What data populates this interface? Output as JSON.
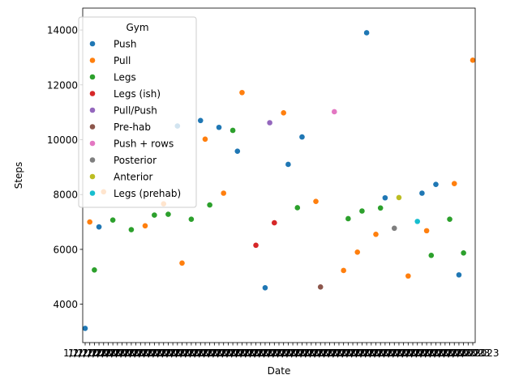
{
  "chart_data": {
    "type": "scatter",
    "title": "",
    "xlabel": "Date",
    "ylabel": "Steps",
    "ylim": [
      2600,
      14800
    ],
    "yticks": [
      4000,
      6000,
      8000,
      10000,
      12000,
      14000
    ],
    "x_category_count": 85,
    "x_tick_label": "1/2/2023",
    "x_tick_label_last": "2023",
    "grid": false,
    "legend": {
      "title": "Gym",
      "position": "top-left"
    },
    "series": [
      {
        "name": "Push",
        "color": "#1f77b4",
        "points": [
          [
            0,
            3120
          ],
          [
            3,
            6820
          ],
          [
            20,
            10500
          ],
          [
            25,
            10700
          ],
          [
            29,
            10450
          ],
          [
            33,
            9580
          ],
          [
            39,
            4600
          ],
          [
            44,
            9100
          ],
          [
            47,
            10100
          ],
          [
            61,
            13900
          ],
          [
            65,
            7880
          ],
          [
            73,
            8050
          ],
          [
            76,
            8370
          ],
          [
            81,
            5070
          ]
        ]
      },
      {
        "name": "Pull",
        "color": "#ff7f0e",
        "points": [
          [
            1,
            7000
          ],
          [
            4,
            8100
          ],
          [
            13,
            6860
          ],
          [
            17,
            7660
          ],
          [
            21,
            5500
          ],
          [
            26,
            10020
          ],
          [
            30,
            8050
          ],
          [
            34,
            11720
          ],
          [
            43,
            10980
          ],
          [
            50,
            7750
          ],
          [
            56,
            5230
          ],
          [
            59,
            5900
          ],
          [
            63,
            6550
          ],
          [
            70,
            5030
          ],
          [
            74,
            6680
          ],
          [
            80,
            8400
          ],
          [
            84,
            12900
          ]
        ]
      },
      {
        "name": "Legs",
        "color": "#2ca02c",
        "points": [
          [
            2,
            5250
          ],
          [
            6,
            7070
          ],
          [
            10,
            6720
          ],
          [
            15,
            7250
          ],
          [
            18,
            7280
          ],
          [
            23,
            7100
          ],
          [
            27,
            7620
          ],
          [
            32,
            10340
          ],
          [
            46,
            7520
          ],
          [
            57,
            7120
          ],
          [
            60,
            7400
          ],
          [
            64,
            7510
          ],
          [
            75,
            5780
          ],
          [
            79,
            7100
          ],
          [
            82,
            5870
          ]
        ]
      },
      {
        "name": "Legs (ish)",
        "color": "#d62728",
        "points": [
          [
            37,
            6150
          ],
          [
            41,
            6970
          ]
        ]
      },
      {
        "name": "Pull/Push",
        "color": "#9467bd",
        "points": [
          [
            40,
            10620
          ]
        ]
      },
      {
        "name": "Pre-hab",
        "color": "#8c564b",
        "points": [
          [
            51,
            4630
          ]
        ]
      },
      {
        "name": "Push + rows",
        "color": "#e377c2",
        "points": [
          [
            54,
            11020
          ]
        ]
      },
      {
        "name": "Posterior",
        "color": "#7f7f7f",
        "points": [
          [
            67,
            6770
          ]
        ]
      },
      {
        "name": "Anterior",
        "color": "#bcbd22",
        "points": [
          [
            68,
            7890
          ]
        ]
      },
      {
        "name": "Legs (prehab)",
        "color": "#17becf",
        "points": [
          [
            72,
            7020
          ]
        ]
      }
    ]
  }
}
